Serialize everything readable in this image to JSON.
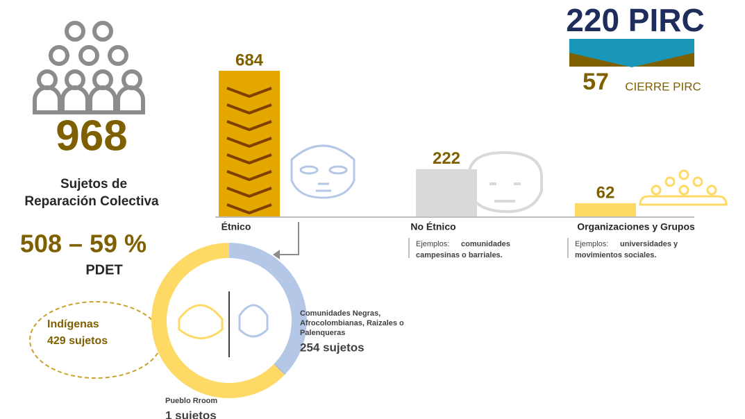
{
  "summary": {
    "total": "968",
    "total_label_lines": [
      "Sujetos de",
      "Reparación  Colectiva"
    ],
    "pdet_value": "508 – 59 %",
    "pdet_label": "PDET",
    "pirc": "220 PIRC",
    "cierre_value": "57",
    "cierre_label": "CIERRE PIRC"
  },
  "chart_data": [
    {
      "type": "bar",
      "categories": [
        "Étnico",
        "No Étnico",
        "Organizaciones y Grupos"
      ],
      "values": [
        684,
        222,
        62
      ],
      "colors": [
        "#e4a700",
        "#d9d9d9",
        "#ffd966"
      ],
      "examples": [
        null,
        {
          "lead": "Ejemplos:",
          "lines": [
            "comunidades",
            "campesinas  o barriales."
          ]
        },
        {
          "lead": "Ejemplos:",
          "lines": [
            "universidades  y",
            "movimientos  sociales."
          ]
        }
      ]
    },
    {
      "type": "pie",
      "categories": [
        "Indígenas",
        "Comunidades Negras, Afrocolombianas, Raizales o Palenqueras",
        "Pueblo Rroom"
      ],
      "category_lines": [
        [
          "Indígenas"
        ],
        [
          "Comunidades Negras,",
          "Afrocolombianas, Raizales o",
          "Palenqueras"
        ],
        [
          "Pueblo Rroom"
        ]
      ],
      "values": [
        429,
        254,
        1
      ],
      "value_labels": [
        "429 sujetos",
        "254 sujetos",
        "1 sujetos"
      ],
      "colors": [
        "#ffd966",
        "#b4c7e7",
        "#8faadc"
      ]
    }
  ]
}
